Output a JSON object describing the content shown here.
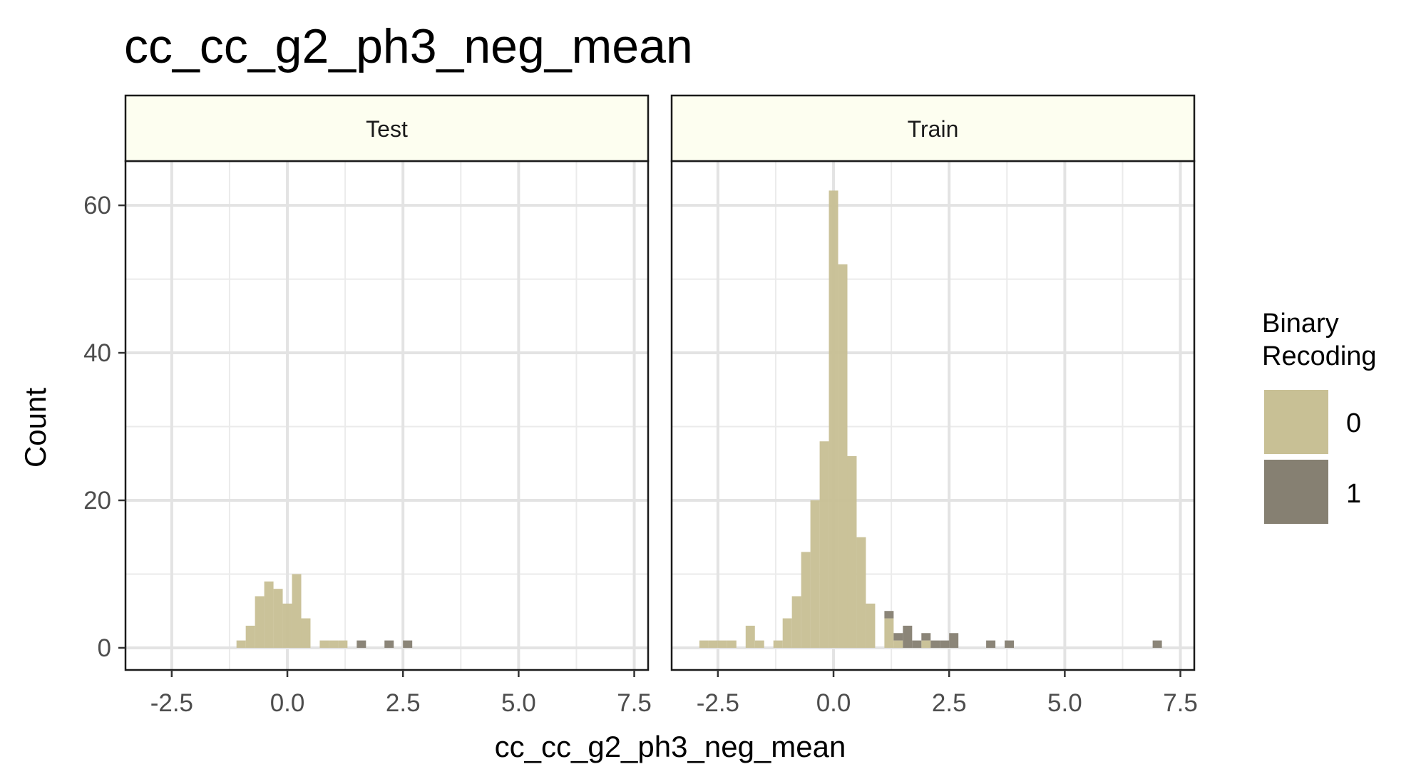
{
  "chart_data": {
    "type": "bar",
    "subtype": "faceted-stacked-histogram",
    "title": "cc_cc_g2_ph3_neg_mean",
    "xlabel": "cc_cc_g2_ph3_neg_mean",
    "ylabel": "Count",
    "xlim": [
      -3.5,
      7.8
    ],
    "ylim": [
      -3,
      66
    ],
    "x_ticks": [
      -2.5,
      0.0,
      2.5,
      5.0,
      7.5
    ],
    "x_tick_labels": [
      "-2.5",
      "0.0",
      "2.5",
      "5.0",
      "7.5"
    ],
    "y_ticks": [
      0,
      20,
      40,
      60
    ],
    "y_tick_labels": [
      "0",
      "20",
      "40",
      "60"
    ],
    "bin_width": 0.2,
    "grid": true,
    "legend": {
      "title_lines": [
        "Binary",
        "Recoding"
      ],
      "position": "right",
      "entries": [
        {
          "label": "0",
          "color": "#c8c095"
        },
        {
          "label": "1",
          "color": "#868072"
        }
      ]
    },
    "facets": [
      {
        "label": "Test",
        "series": [
          {
            "group": "0",
            "bins": [
              {
                "x0": -1.1,
                "x1": -0.9,
                "count": 1
              },
              {
                "x0": -0.9,
                "x1": -0.7,
                "count": 3
              },
              {
                "x0": -0.7,
                "x1": -0.5,
                "count": 7
              },
              {
                "x0": -0.5,
                "x1": -0.3,
                "count": 9
              },
              {
                "x0": -0.3,
                "x1": -0.1,
                "count": 8
              },
              {
                "x0": -0.1,
                "x1": 0.1,
                "count": 6
              },
              {
                "x0": 0.1,
                "x1": 0.3,
                "count": 10
              },
              {
                "x0": 0.3,
                "x1": 0.5,
                "count": 4
              },
              {
                "x0": 0.7,
                "x1": 0.9,
                "count": 1
              },
              {
                "x0": 0.9,
                "x1": 1.1,
                "count": 1
              },
              {
                "x0": 1.1,
                "x1": 1.3,
                "count": 1
              }
            ]
          },
          {
            "group": "1",
            "bins": [
              {
                "x0": 1.5,
                "x1": 1.7,
                "count": 1
              },
              {
                "x0": 2.1,
                "x1": 2.3,
                "count": 1
              },
              {
                "x0": 2.5,
                "x1": 2.7,
                "count": 1
              }
            ]
          }
        ]
      },
      {
        "label": "Train",
        "series": [
          {
            "group": "0",
            "bins": [
              {
                "x0": -2.9,
                "x1": -2.7,
                "count": 1
              },
              {
                "x0": -2.7,
                "x1": -2.5,
                "count": 1
              },
              {
                "x0": -2.5,
                "x1": -2.3,
                "count": 1
              },
              {
                "x0": -2.3,
                "x1": -2.1,
                "count": 1
              },
              {
                "x0": -1.9,
                "x1": -1.7,
                "count": 3
              },
              {
                "x0": -1.7,
                "x1": -1.5,
                "count": 1
              },
              {
                "x0": -1.3,
                "x1": -1.1,
                "count": 1
              },
              {
                "x0": -1.1,
                "x1": -0.9,
                "count": 4
              },
              {
                "x0": -0.9,
                "x1": -0.7,
                "count": 7
              },
              {
                "x0": -0.7,
                "x1": -0.5,
                "count": 13
              },
              {
                "x0": -0.5,
                "x1": -0.3,
                "count": 20
              },
              {
                "x0": -0.3,
                "x1": -0.1,
                "count": 28
              },
              {
                "x0": -0.1,
                "x1": 0.1,
                "count": 62
              },
              {
                "x0": 0.1,
                "x1": 0.3,
                "count": 52
              },
              {
                "x0": 0.3,
                "x1": 0.5,
                "count": 26
              },
              {
                "x0": 0.5,
                "x1": 0.7,
                "count": 15
              },
              {
                "x0": 0.7,
                "x1": 0.9,
                "count": 6
              },
              {
                "x0": 1.1,
                "x1": 1.3,
                "count": 4
              },
              {
                "x0": 1.3,
                "x1": 1.5,
                "count": 1
              },
              {
                "x0": 1.9,
                "x1": 2.1,
                "count": 1
              }
            ]
          },
          {
            "group": "1",
            "bins": [
              {
                "x0": 1.1,
                "x1": 1.3,
                "count": 1
              },
              {
                "x0": 1.3,
                "x1": 1.5,
                "count": 1
              },
              {
                "x0": 1.5,
                "x1": 1.7,
                "count": 3
              },
              {
                "x0": 1.7,
                "x1": 1.9,
                "count": 1
              },
              {
                "x0": 1.9,
                "x1": 2.1,
                "count": 1
              },
              {
                "x0": 2.1,
                "x1": 2.3,
                "count": 1
              },
              {
                "x0": 2.3,
                "x1": 2.5,
                "count": 1
              },
              {
                "x0": 2.5,
                "x1": 2.7,
                "count": 2
              },
              {
                "x0": 3.3,
                "x1": 3.5,
                "count": 1
              },
              {
                "x0": 3.7,
                "x1": 3.9,
                "count": 1
              },
              {
                "x0": 6.9,
                "x1": 7.1,
                "count": 1
              }
            ]
          }
        ]
      }
    ]
  }
}
